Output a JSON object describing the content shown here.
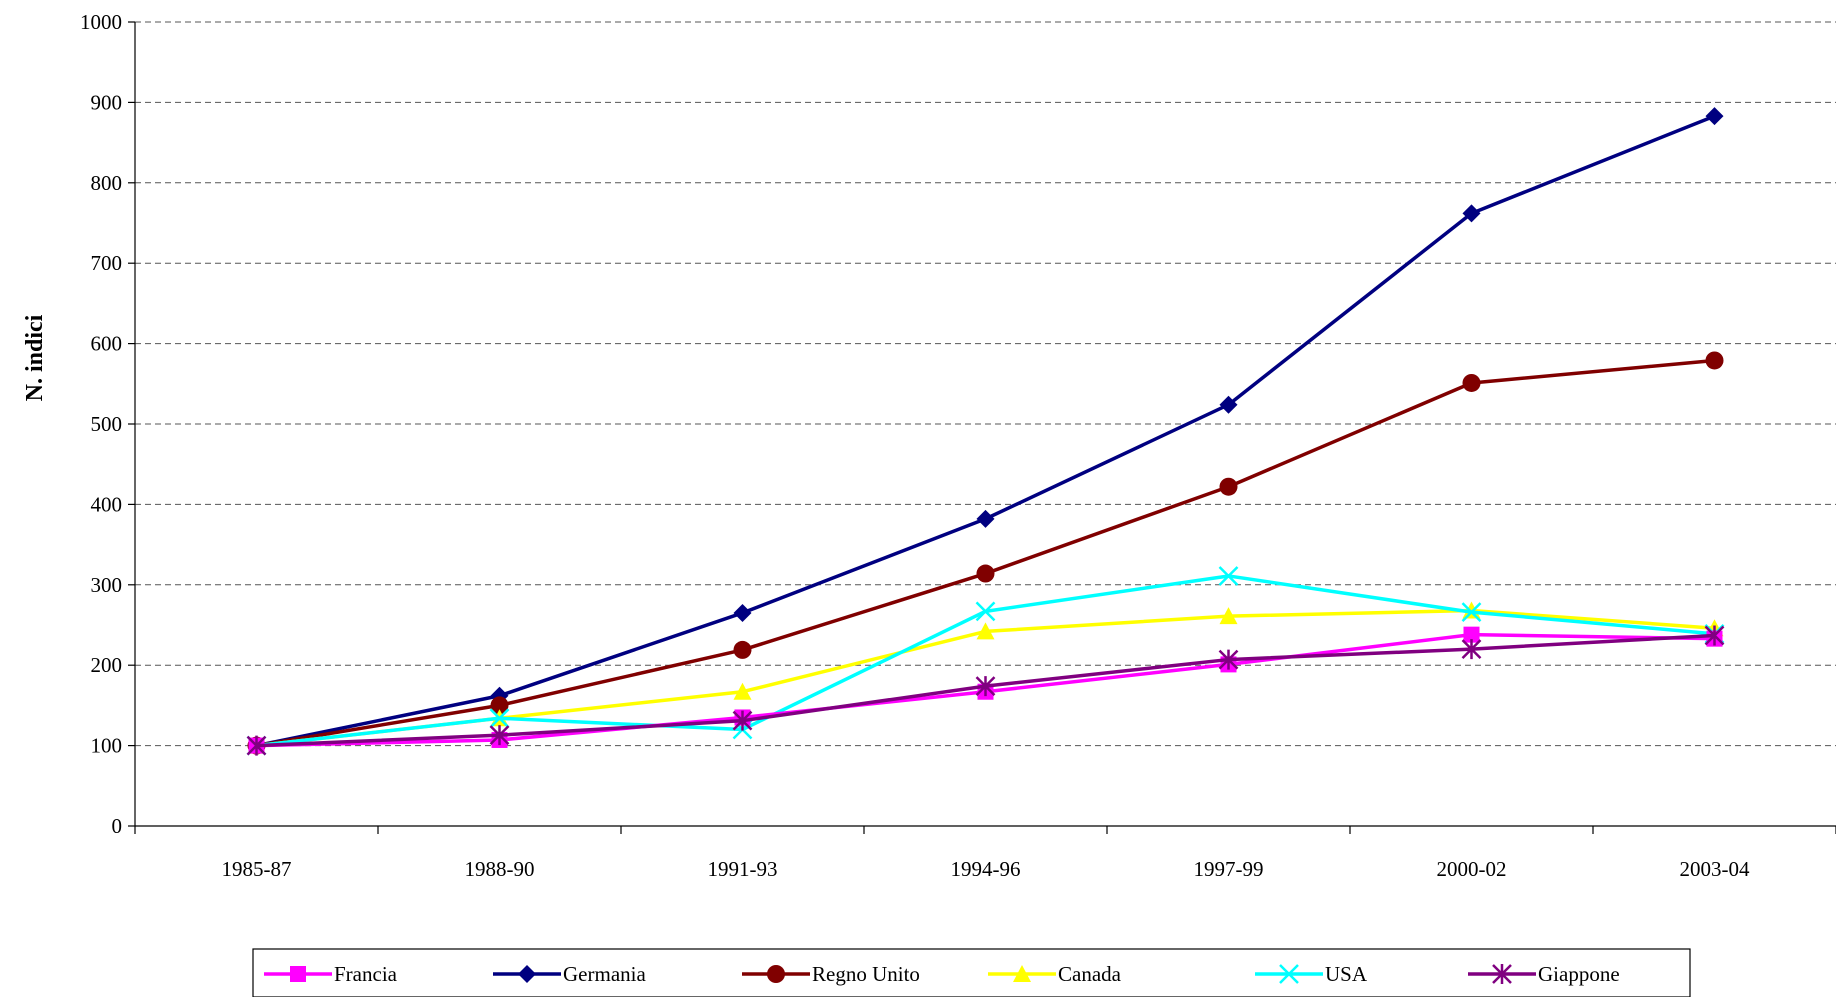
{
  "chart_data": {
    "type": "line",
    "title": "",
    "xlabel": "",
    "ylabel": "N. indici",
    "ylim": [
      0,
      1000
    ],
    "yticks": [
      "0",
      "100",
      "200",
      "300",
      "400",
      "500",
      "600",
      "700",
      "800",
      "900",
      "1000"
    ],
    "categories": [
      "1985-87",
      "1988-90",
      "1991-93",
      "1994-96",
      "1997-99",
      "2000-02",
      "2003-04"
    ],
    "grid": "horizontal dashed",
    "legend_position": "bottom",
    "series": [
      {
        "name": "Francia",
        "color": "#ff00ff",
        "marker": "square",
        "values": [
          100,
          107,
          135,
          167,
          201,
          238,
          233
        ]
      },
      {
        "name": "Germania",
        "color": "#000080",
        "marker": "diamond",
        "values": [
          100,
          162,
          265,
          382,
          524,
          762,
          883
        ]
      },
      {
        "name": "Regno Unito",
        "color": "#800000",
        "marker": "circle",
        "values": [
          100,
          150,
          219,
          314,
          422,
          551,
          579
        ]
      },
      {
        "name": "Canada",
        "color": "#ffff00",
        "marker": "triangle",
        "values": [
          100,
          134,
          167,
          242,
          261,
          268,
          246
        ]
      },
      {
        "name": "USA",
        "color": "#00ffff",
        "marker": "x",
        "values": [
          100,
          134,
          120,
          267,
          311,
          266,
          239
        ]
      },
      {
        "name": "Giappone",
        "color": "#800080",
        "marker": "asterisk",
        "values": [
          100,
          113,
          131,
          174,
          207,
          220,
          237
        ]
      }
    ]
  }
}
